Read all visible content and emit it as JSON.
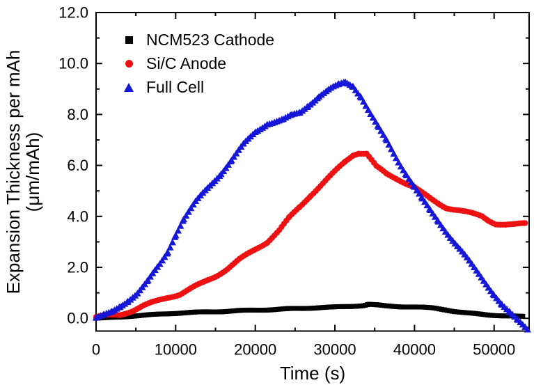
{
  "chart_data": {
    "type": "scatter",
    "title": "",
    "xlabel": "Time (s)",
    "ylabel_line1": "Expansion Thickness per mAh",
    "ylabel_line2": "(μm/mAh)",
    "xlim": [
      0,
      54400
    ],
    "ylim": [
      -0.5,
      12.0
    ],
    "grid": false,
    "legend_position": "top-left-inside",
    "x_major_ticks": [
      0,
      10000,
      20000,
      30000,
      40000,
      50000
    ],
    "x_major_labels": [
      "0",
      "10000",
      "20000",
      "30000",
      "40000",
      "50000"
    ],
    "x_minor_ticks": [
      5000,
      15000,
      25000,
      35000,
      45000
    ],
    "y_major_ticks": [
      0,
      2,
      4,
      6,
      8,
      10,
      12
    ],
    "y_major_labels": [
      "0.0",
      "2.0",
      "4.0",
      "6.0",
      "8.0",
      "10.0",
      "12.0"
    ],
    "y_minor_ticks": [
      1,
      3,
      5,
      7,
      9,
      11
    ],
    "axis_color": "#000000",
    "series": [
      {
        "name": "NCM523 Cathode",
        "marker": "square",
        "color": "#000000",
        "points": [
          [
            0,
            0.0
          ],
          [
            1500,
            0.02
          ],
          [
            3000,
            0.05
          ],
          [
            4500,
            0.09
          ],
          [
            6000,
            0.12
          ],
          [
            8000,
            0.16
          ],
          [
            10000,
            0.2
          ],
          [
            12000,
            0.23
          ],
          [
            14000,
            0.25
          ],
          [
            16000,
            0.27
          ],
          [
            18000,
            0.3
          ],
          [
            20000,
            0.32
          ],
          [
            22000,
            0.34
          ],
          [
            24000,
            0.37
          ],
          [
            26000,
            0.39
          ],
          [
            28000,
            0.42
          ],
          [
            30000,
            0.44
          ],
          [
            32000,
            0.47
          ],
          [
            33500,
            0.5
          ],
          [
            34300,
            0.55
          ],
          [
            35300,
            0.52
          ],
          [
            36500,
            0.48
          ],
          [
            38000,
            0.46
          ],
          [
            39500,
            0.45
          ],
          [
            41000,
            0.43
          ],
          [
            42500,
            0.4
          ],
          [
            43800,
            0.34
          ],
          [
            45000,
            0.27
          ],
          [
            46500,
            0.21
          ],
          [
            48000,
            0.17
          ],
          [
            49500,
            0.13
          ],
          [
            51000,
            0.1
          ],
          [
            52500,
            0.08
          ],
          [
            53600,
            0.07
          ]
        ]
      },
      {
        "name": "Si/C Anode",
        "marker": "circle",
        "color": "#ee1111",
        "points": [
          [
            0,
            0.05
          ],
          [
            1500,
            0.1
          ],
          [
            3000,
            0.13
          ],
          [
            4500,
            0.3
          ],
          [
            6000,
            0.5
          ],
          [
            7500,
            0.65
          ],
          [
            9000,
            0.82
          ],
          [
            10500,
            0.95
          ],
          [
            12000,
            1.18
          ],
          [
            13500,
            1.4
          ],
          [
            15000,
            1.65
          ],
          [
            16500,
            1.95
          ],
          [
            18000,
            2.3
          ],
          [
            19500,
            2.6
          ],
          [
            21500,
            3.0
          ],
          [
            23000,
            3.45
          ],
          [
            24300,
            3.95
          ],
          [
            25600,
            4.37
          ],
          [
            27000,
            4.85
          ],
          [
            28500,
            5.3
          ],
          [
            30000,
            5.75
          ],
          [
            31300,
            6.15
          ],
          [
            32300,
            6.42
          ],
          [
            33000,
            6.5
          ],
          [
            34000,
            6.47
          ],
          [
            35200,
            5.95
          ],
          [
            36500,
            5.65
          ],
          [
            38000,
            5.45
          ],
          [
            39000,
            5.3
          ],
          [
            40000,
            5.15
          ],
          [
            41000,
            4.9
          ],
          [
            42000,
            4.68
          ],
          [
            43000,
            4.5
          ],
          [
            44000,
            4.35
          ],
          [
            45500,
            4.25
          ],
          [
            47000,
            4.12
          ],
          [
            48500,
            4.0
          ],
          [
            49300,
            3.85
          ],
          [
            50200,
            3.72
          ],
          [
            51500,
            3.67
          ],
          [
            52500,
            3.66
          ],
          [
            53900,
            3.72
          ]
        ]
      },
      {
        "name": "Full Cell",
        "marker": "triangle-up",
        "color": "#1616d8",
        "points": [
          [
            0,
            0.02
          ],
          [
            1000,
            0.1
          ],
          [
            2000,
            0.22
          ],
          [
            3000,
            0.45
          ],
          [
            4000,
            0.7
          ],
          [
            5200,
            1.0
          ],
          [
            6500,
            1.45
          ],
          [
            8000,
            2.1
          ],
          [
            9000,
            2.6
          ],
          [
            10000,
            3.3
          ],
          [
            11000,
            3.9
          ],
          [
            12500,
            4.55
          ],
          [
            14000,
            5.1
          ],
          [
            15700,
            5.7
          ],
          [
            17000,
            6.2
          ],
          [
            18500,
            6.8
          ],
          [
            20000,
            7.3
          ],
          [
            21500,
            7.65
          ],
          [
            23500,
            7.78
          ],
          [
            24600,
            7.95
          ],
          [
            25600,
            8.06
          ],
          [
            26600,
            8.35
          ],
          [
            28000,
            8.72
          ],
          [
            29500,
            9.0
          ],
          [
            30500,
            9.15
          ],
          [
            31300,
            9.26
          ],
          [
            32300,
            9.12
          ],
          [
            33300,
            8.7
          ],
          [
            34500,
            8.0
          ],
          [
            35500,
            7.45
          ],
          [
            36500,
            6.95
          ],
          [
            38000,
            6.15
          ],
          [
            39000,
            5.65
          ],
          [
            40000,
            5.15
          ],
          [
            41000,
            4.65
          ],
          [
            42000,
            4.2
          ],
          [
            43000,
            3.8
          ],
          [
            44500,
            3.2
          ],
          [
            46000,
            2.6
          ],
          [
            47500,
            1.95
          ],
          [
            49000,
            1.35
          ],
          [
            50000,
            0.95
          ],
          [
            51000,
            0.55
          ],
          [
            52000,
            0.2
          ],
          [
            53000,
            -0.12
          ],
          [
            54200,
            -0.45
          ]
        ]
      }
    ]
  }
}
